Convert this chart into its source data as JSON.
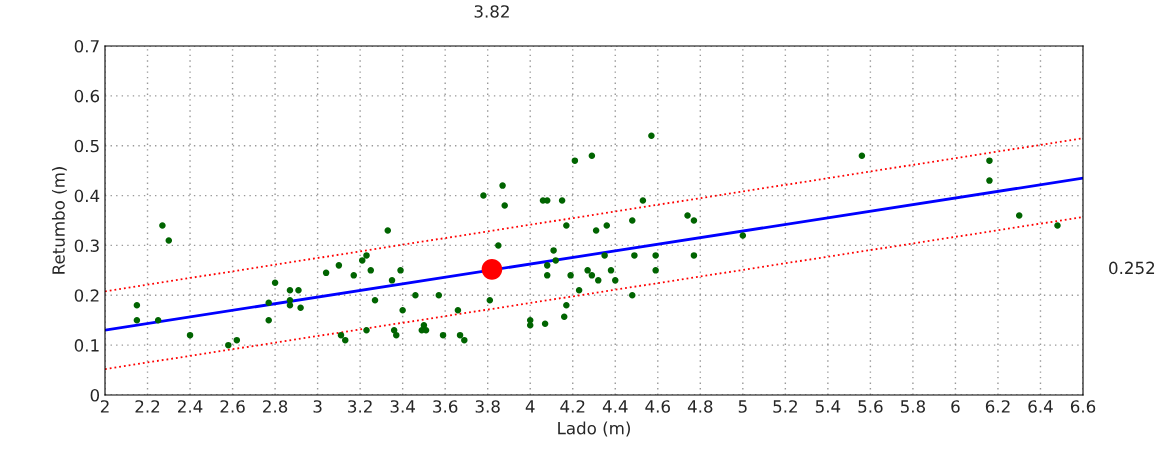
{
  "chart_data": {
    "type": "scatter",
    "xlabel": "Lado (m)",
    "ylabel": "Retumbo (m)",
    "xlim": [
      2,
      6.6
    ],
    "xticks": [
      2,
      2.2,
      2.4,
      2.6,
      2.8,
      3,
      3.2,
      3.4,
      3.6,
      3.8,
      4,
      4.2,
      4.4,
      4.6,
      4.8,
      5,
      5.2,
      5.4,
      5.6,
      5.8,
      6,
      6.2,
      6.4,
      6.6
    ],
    "ylim": [
      0,
      0.7
    ],
    "yticks": [
      0,
      0.1,
      0.2,
      0.3,
      0.4,
      0.5,
      0.6,
      0.7
    ],
    "annotations": [
      "3.82",
      "0.252"
    ],
    "grid": true,
    "legend": false,
    "series": [
      {
        "color": "#006400",
        "marker": "circle",
        "x": [
          2.15,
          2.15,
          2.25,
          2.27,
          2.3,
          2.4,
          2.58,
          2.62,
          2.77,
          2.77,
          2.8,
          2.87,
          2.87,
          2.87,
          2.91,
          2.92,
          3.04,
          3.1,
          3.11,
          3.13,
          3.17,
          3.21,
          3.23,
          3.23,
          3.25,
          3.27,
          3.33,
          3.35,
          3.36,
          3.37,
          3.39,
          3.4,
          3.46,
          3.49,
          3.5,
          3.51,
          3.57,
          3.59,
          3.66,
          3.67,
          3.69,
          3.78,
          3.81,
          3.85,
          3.87,
          3.88,
          4.0,
          4.0,
          4.06,
          4.07,
          4.08,
          4.08,
          4.08,
          4.11,
          4.12,
          4.15,
          4.16,
          4.17,
          4.17,
          4.19,
          4.21,
          4.23,
          4.27,
          4.29,
          4.29,
          4.31,
          4.32,
          4.35,
          4.36,
          4.38,
          4.4,
          4.48,
          4.48,
          4.49,
          4.53,
          4.57,
          4.59,
          4.59,
          4.74,
          4.77,
          4.77,
          5.0,
          5.56,
          6.16,
          6.16,
          6.3,
          6.48
        ],
        "values": [
          0.18,
          0.15,
          0.15,
          0.34,
          0.31,
          0.12,
          0.1,
          0.11,
          0.185,
          0.15,
          0.225,
          0.21,
          0.19,
          0.18,
          0.21,
          0.175,
          0.245,
          0.26,
          0.12,
          0.11,
          0.24,
          0.27,
          0.28,
          0.13,
          0.25,
          0.19,
          0.33,
          0.23,
          0.13,
          0.12,
          0.25,
          0.17,
          0.2,
          0.13,
          0.14,
          0.13,
          0.2,
          0.12,
          0.17,
          0.12,
          0.11,
          0.4,
          0.19,
          0.3,
          0.42,
          0.38,
          0.15,
          0.14,
          0.39,
          0.143,
          0.39,
          0.26,
          0.24,
          0.29,
          0.27,
          0.39,
          0.157,
          0.34,
          0.18,
          0.24,
          0.47,
          0.21,
          0.25,
          0.48,
          0.24,
          0.33,
          0.23,
          0.28,
          0.34,
          0.25,
          0.23,
          0.2,
          0.35,
          0.28,
          0.39,
          0.52,
          0.28,
          0.25,
          0.36,
          0.35,
          0.28,
          0.32,
          0.48,
          0.47,
          0.43,
          0.36,
          0.34
        ]
      },
      {
        "type": "line",
        "color": "#0000ff",
        "line_style": "solid",
        "x": [
          2,
          6.6
        ],
        "values": [
          0.13,
          0.435
        ]
      },
      {
        "type": "line",
        "color": "#ff0000",
        "line_style": "dotted",
        "x": [
          2,
          6.6
        ],
        "values": [
          0.208,
          0.515
        ]
      },
      {
        "type": "line",
        "color": "#ff0000",
        "line_style": "dotted",
        "x": [
          2,
          6.6
        ],
        "values": [
          0.052,
          0.357
        ]
      },
      {
        "type": "scatter",
        "color": "#ff0000",
        "marker": "circle",
        "x": [
          3.82
        ],
        "values": [
          0.252
        ]
      }
    ]
  }
}
